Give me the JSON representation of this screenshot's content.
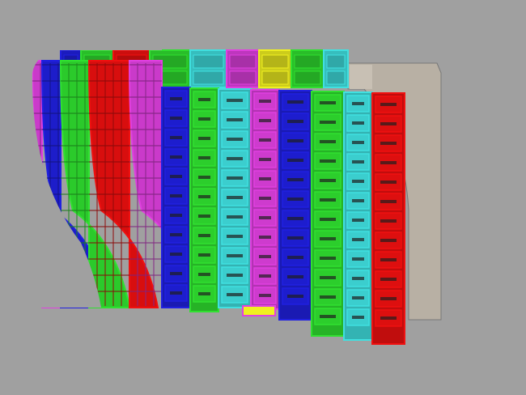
{
  "viewport": {
    "background": "#a0a0a0",
    "model_color": "#b8b0a4"
  },
  "colors": {
    "blue": "#2020e0",
    "green": "#30e030",
    "cyan": "#40e0e0",
    "magenta": "#e040e0",
    "red": "#f01010",
    "yellow": "#f0f020"
  },
  "top_strip": [
    "blue",
    "green",
    "red",
    "green",
    "cyan",
    "magenta",
    "yellow",
    "green",
    "cyan"
  ],
  "hull_back_columns": [
    "magenta",
    "blue",
    "green",
    "red",
    "magenta"
  ],
  "front_columns": [
    "blue",
    "green",
    "cyan",
    "magenta",
    "blue",
    "green",
    "cyan",
    "red"
  ]
}
